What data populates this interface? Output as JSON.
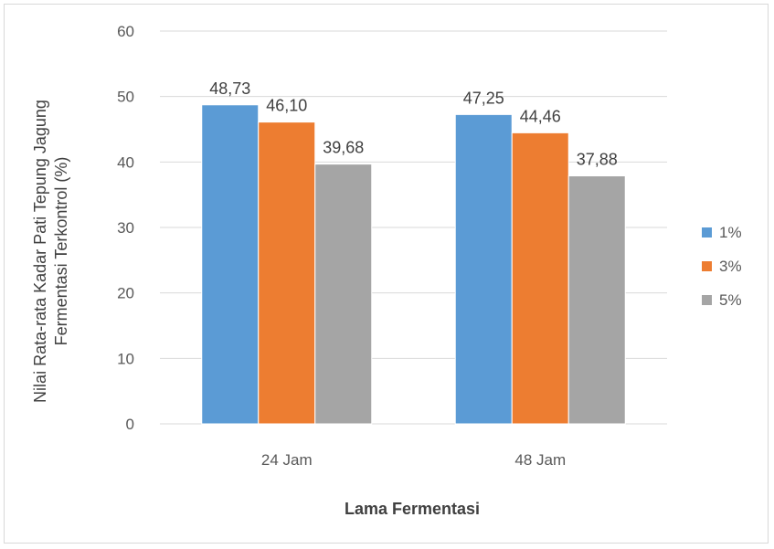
{
  "chart_data": {
    "type": "bar",
    "categories": [
      "24 Jam",
      "48 Jam"
    ],
    "series": [
      {
        "name": "1%",
        "color": "#5b9bd5",
        "values": [
          48.73,
          47.25
        ],
        "labels": [
          "48,73",
          "47,25"
        ]
      },
      {
        "name": "3%",
        "color": "#ed7d31",
        "values": [
          46.1,
          44.46
        ],
        "labels": [
          "46,10",
          "44,46"
        ]
      },
      {
        "name": "5%",
        "color": "#a5a5a5",
        "values": [
          39.68,
          37.88
        ],
        "labels": [
          "39,68",
          "37,88"
        ]
      }
    ],
    "xlabel": "Lama Fermentasi",
    "ylabel_lines": [
      "Nilai Rata-rata Kadar Pati Tepung Jagung",
      "Fermentasi Terkontrol (%)"
    ],
    "ylim": [
      0,
      60
    ],
    "yticks": [
      "0",
      "10",
      "20",
      "30",
      "40",
      "50",
      "60"
    ],
    "grid": true,
    "legend_position": "right"
  }
}
